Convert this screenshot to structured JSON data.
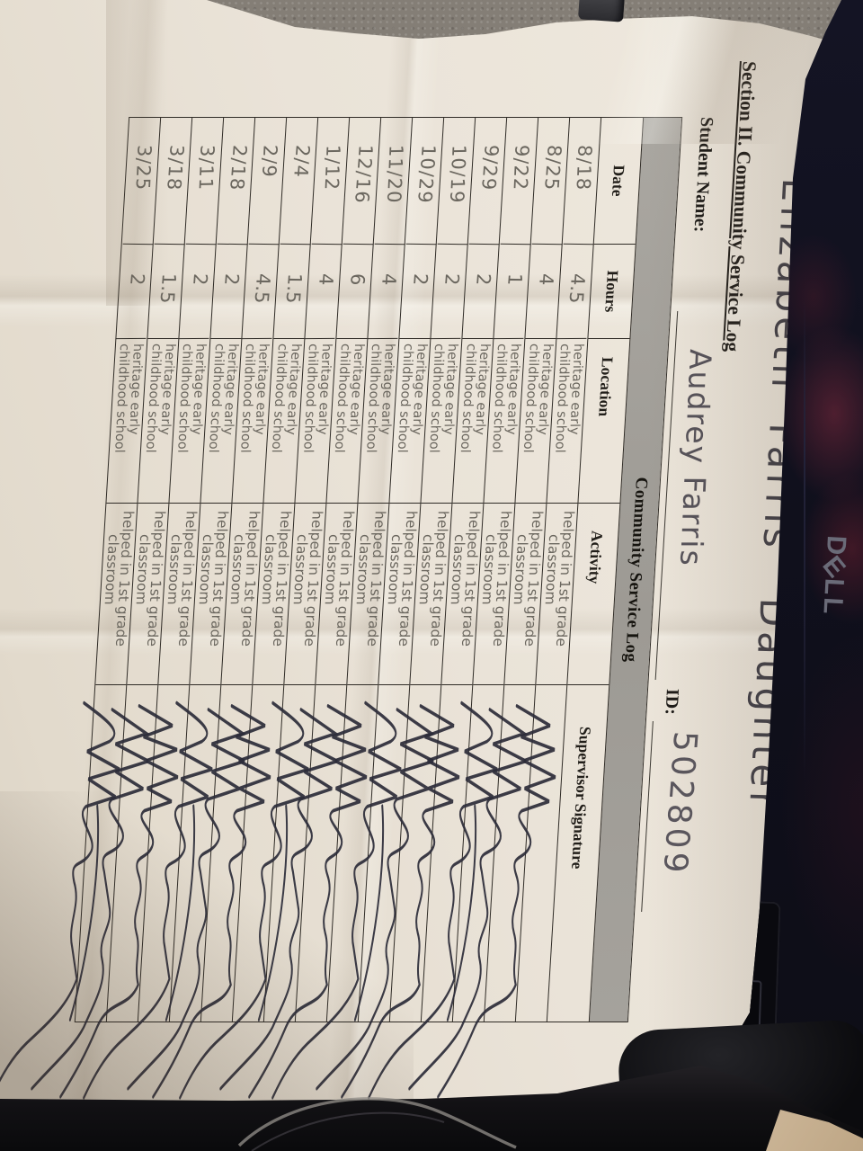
{
  "form": {
    "handwritten_title": "Elizabeth Farris' Daughter",
    "section_title": "Section II. Community Service Log",
    "student_name_label": "Student Name:",
    "student_name_value": "Audrey Farris",
    "id_label": "ID:",
    "id_value": "502809",
    "table": {
      "title": "Community Service Log",
      "headers": [
        "Date",
        "Hours",
        "Location",
        "Activity",
        "Supervisor Signature"
      ],
      "signature_note": "illegible cursive supervisor signature scribble in every row",
      "rows": [
        {
          "date": "8/18",
          "hours": "4.5",
          "location": [
            "heritage early",
            "childhood school"
          ],
          "activity": [
            "helped in 1st grade",
            "classroom"
          ]
        },
        {
          "date": "8/25",
          "hours": "4",
          "location": [
            "heritage early",
            "childhood school"
          ],
          "activity": [
            "helped in 1st grade",
            "classroom"
          ]
        },
        {
          "date": "9/22",
          "hours": "1",
          "location": [
            "heritage early",
            "childhood school"
          ],
          "activity": [
            "helped in 1st grade",
            "classroom"
          ]
        },
        {
          "date": "9/29",
          "hours": "2",
          "location": [
            "heritage early",
            "childhood school"
          ],
          "activity": [
            "helped in 1st grade",
            "classroom"
          ]
        },
        {
          "date": "10/19",
          "hours": "2",
          "location": [
            "heritage early",
            "childhood school"
          ],
          "activity": [
            "helped in 1st grade",
            "classroom"
          ]
        },
        {
          "date": "10/29",
          "hours": "2",
          "location": [
            "heritage early",
            "childhood school"
          ],
          "activity": [
            "helped in 1st grade",
            "classroom"
          ]
        },
        {
          "date": "11/20",
          "hours": "4",
          "location": [
            "heritage early",
            "childhood school"
          ],
          "activity": [
            "helped in 1st grade",
            "classroom"
          ]
        },
        {
          "date": "12/16",
          "hours": "6",
          "location": [
            "heritage early",
            "childhood school"
          ],
          "activity": [
            "helped in 1st grade",
            "classroom"
          ]
        },
        {
          "date": "1/12",
          "hours": "4",
          "location": [
            "heritage early",
            "childhood school"
          ],
          "activity": [
            "helped in 1st grade",
            "classroom"
          ]
        },
        {
          "date": "2/4",
          "hours": "1.5",
          "location": [
            "heritage early",
            "childhood school"
          ],
          "activity": [
            "helped in 1st grade",
            "classroom"
          ]
        },
        {
          "date": "2/9",
          "hours": "4.5",
          "location": [
            "heritage early",
            "childhood school"
          ],
          "activity": [
            "helped in 1st grade",
            "classroom"
          ]
        },
        {
          "date": "2/18",
          "hours": "2",
          "location": [
            "heritage early",
            "childhood school"
          ],
          "activity": [
            "helped in 1st grade",
            "classroom"
          ]
        },
        {
          "date": "3/11",
          "hours": "2",
          "location": [
            "heritage early",
            "childhood school"
          ],
          "activity": [
            "helped in 1st grade",
            "classroom"
          ]
        },
        {
          "date": "3/18",
          "hours": "1.5",
          "location": [
            "heritage early",
            "childhood school"
          ],
          "activity": [
            "helped in 1st grade",
            "classroom"
          ]
        },
        {
          "date": "3/25",
          "hours": "2",
          "location": [
            "heritage early",
            "childhood school"
          ],
          "activity": [
            "helped in 1st grade",
            "classroom"
          ]
        }
      ]
    }
  },
  "background": {
    "device_logo": "DELL",
    "colors": {
      "paper": "#eae3d8",
      "table_band_gray": "#a5a29c",
      "pencil_handwriting": "#6b675f",
      "signature_ink": "#2b2b38",
      "laptop_navy": "#12121e",
      "lid_red_glow": "#6e2030",
      "carpet": "#847e76",
      "floor": "#c8b295"
    }
  }
}
